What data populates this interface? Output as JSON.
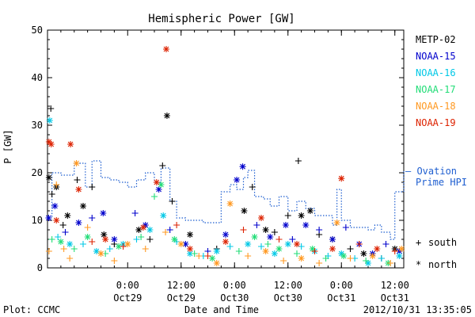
{
  "chart_data": {
    "type": "scatter",
    "title": "Hemispheric Power [GW]",
    "ylabel": "P [GW]",
    "xlabel": "Date and Time",
    "ylim": [
      0,
      50
    ],
    "yticks": [
      0,
      10,
      20,
      30,
      40,
      50
    ],
    "xlim": [
      "2012-10-28T06:00",
      "2012-10-31T14:00"
    ],
    "xticks": [
      {
        "x": "2012-10-29T00:00",
        "time": "0:00",
        "date": "Oct29"
      },
      {
        "x": "2012-10-29T12:00",
        "time": "12:00",
        "date": "Oct29"
      },
      {
        "x": "2012-10-30T00:00",
        "time": "0:00",
        "date": "Oct30"
      },
      {
        "x": "2012-10-30T12:00",
        "time": "12:00",
        "date": "Oct30"
      },
      {
        "x": "2012-10-31T00:00",
        "time": "0:00",
        "date": "Oct31"
      },
      {
        "x": "2012-10-31T12:00",
        "time": "12:00",
        "date": "Oct31"
      }
    ],
    "legend": {
      "placement": "right",
      "entries": [
        {
          "label": "METP-02",
          "color": "#000000"
        },
        {
          "label": "NOAA-15",
          "color": "#0000cc"
        },
        {
          "label": "NOAA-16",
          "color": "#00c8e6"
        },
        {
          "label": "NOAA-17",
          "color": "#22dd77"
        },
        {
          "label": "NOAA-18",
          "color": "#ff9922"
        },
        {
          "label": "NOAA-19",
          "color": "#dd2200"
        }
      ],
      "ovation_dash": "— Ovation",
      "ovation_label": "Prime HPI",
      "ovation_color": "#1f5fd0",
      "marker_legend": [
        {
          "symbol": "+",
          "label": "south"
        },
        {
          "symbol": "*",
          "label": "north"
        }
      ]
    },
    "series": [
      {
        "name": "METP-02",
        "color": "#000000",
        "points": [
          [
            "2012-10-28T06:20",
            19,
            "n"
          ],
          [
            "2012-10-28T06:45",
            33.5,
            "s"
          ],
          [
            "2012-10-28T07:00",
            15.5,
            "s"
          ],
          [
            "2012-10-28T08:00",
            17,
            "n"
          ],
          [
            "2012-10-28T09:30",
            9,
            "s"
          ],
          [
            "2012-10-28T10:30",
            11,
            "n"
          ],
          [
            "2012-10-28T12:40",
            18.5,
            "s"
          ],
          [
            "2012-10-28T14:00",
            13,
            "n"
          ],
          [
            "2012-10-28T16:00",
            17,
            "s"
          ],
          [
            "2012-10-28T18:40",
            7,
            "n"
          ],
          [
            "2012-10-28T21:00",
            5,
            "s"
          ],
          [
            "2012-10-29T02:30",
            8,
            "n"
          ],
          [
            "2012-10-29T05:00",
            6,
            "s"
          ],
          [
            "2012-10-29T07:50",
            21.5,
            "s"
          ],
          [
            "2012-10-29T08:50",
            32,
            "n"
          ],
          [
            "2012-10-29T10:00",
            14,
            "s"
          ],
          [
            "2012-10-29T14:00",
            7,
            "n"
          ],
          [
            "2012-10-29T20:00",
            4,
            "s"
          ],
          [
            "2012-10-30T02:10",
            12,
            "n"
          ],
          [
            "2012-10-30T04:00",
            17,
            "s"
          ],
          [
            "2012-10-30T07:00",
            8,
            "n"
          ],
          [
            "2012-10-30T09:00",
            7.5,
            "s"
          ],
          [
            "2012-10-30T12:00",
            11,
            "s"
          ],
          [
            "2012-10-30T14:20",
            22.5,
            "s"
          ],
          [
            "2012-10-30T15:00",
            11,
            "n"
          ],
          [
            "2012-10-30T17:00",
            12,
            "n"
          ],
          [
            "2012-10-30T19:00",
            7,
            "s"
          ],
          [
            "2012-10-30T22:00",
            6,
            "n"
          ],
          [
            "2012-10-31T02:00",
            4,
            "s"
          ],
          [
            "2012-10-31T05:00",
            3,
            "n"
          ],
          [
            "2012-10-31T09:00",
            2,
            "s"
          ],
          [
            "2012-10-31T12:00",
            4,
            "n"
          ]
        ]
      },
      {
        "name": "NOAA-15",
        "color": "#0000cc",
        "points": [
          [
            "2012-10-28T06:15",
            10.5,
            "n"
          ],
          [
            "2012-10-28T07:40",
            13,
            "n"
          ],
          [
            "2012-10-28T10:00",
            7.5,
            "s"
          ],
          [
            "2012-10-28T13:00",
            9.5,
            "n"
          ],
          [
            "2012-10-28T16:00",
            10.5,
            "s"
          ],
          [
            "2012-10-28T18:30",
            11.5,
            "n"
          ],
          [
            "2012-10-28T21:00",
            6,
            "n"
          ],
          [
            "2012-10-29T01:40",
            11.5,
            "s"
          ],
          [
            "2012-10-29T04:00",
            9,
            "n"
          ],
          [
            "2012-10-29T07:00",
            16.5,
            "n"
          ],
          [
            "2012-10-29T09:30",
            8,
            "s"
          ],
          [
            "2012-10-29T13:00",
            5,
            "n"
          ],
          [
            "2012-10-29T18:00",
            3.5,
            "s"
          ],
          [
            "2012-10-29T22:00",
            7,
            "n"
          ],
          [
            "2012-10-30T00:30",
            18.5,
            "n"
          ],
          [
            "2012-10-30T01:50",
            21.3,
            "n"
          ],
          [
            "2012-10-30T05:00",
            9,
            "s"
          ],
          [
            "2012-10-30T08:00",
            6.5,
            "n"
          ],
          [
            "2012-10-30T11:30",
            9,
            "n"
          ],
          [
            "2012-10-30T13:00",
            6,
            "s"
          ],
          [
            "2012-10-30T16:00",
            9,
            "n"
          ],
          [
            "2012-10-30T19:00",
            8,
            "s"
          ],
          [
            "2012-10-30T22:00",
            6,
            "n"
          ],
          [
            "2012-10-31T01:00",
            8.5,
            "s"
          ],
          [
            "2012-10-31T04:00",
            5,
            "n"
          ],
          [
            "2012-10-31T07:00",
            3,
            "n"
          ],
          [
            "2012-10-31T10:00",
            5,
            "s"
          ],
          [
            "2012-10-31T13:00",
            3.5,
            "n"
          ]
        ]
      },
      {
        "name": "NOAA-16",
        "color": "#00c8e6",
        "points": [
          [
            "2012-10-28T06:30",
            31,
            "n"
          ],
          [
            "2012-10-28T08:20",
            6.5,
            "s"
          ],
          [
            "2012-10-28T11:00",
            5,
            "n"
          ],
          [
            "2012-10-28T14:00",
            5,
            "s"
          ],
          [
            "2012-10-28T17:00",
            3.5,
            "n"
          ],
          [
            "2012-10-28T20:00",
            4,
            "s"
          ],
          [
            "2012-10-28T23:00",
            5,
            "n"
          ],
          [
            "2012-10-29T02:00",
            6,
            "s"
          ],
          [
            "2012-10-29T05:00",
            8,
            "n"
          ],
          [
            "2012-10-29T08:00",
            11,
            "n"
          ],
          [
            "2012-10-29T11:00",
            5.5,
            "s"
          ],
          [
            "2012-10-29T14:00",
            3,
            "n"
          ],
          [
            "2012-10-29T17:00",
            2.5,
            "s"
          ],
          [
            "2012-10-29T20:00",
            3.5,
            "n"
          ],
          [
            "2012-10-29T23:00",
            4.5,
            "s"
          ],
          [
            "2012-10-30T03:00",
            5,
            "n"
          ],
          [
            "2012-10-30T06:00",
            4.5,
            "s"
          ],
          [
            "2012-10-30T09:00",
            3,
            "n"
          ],
          [
            "2012-10-30T12:00",
            5,
            "n"
          ],
          [
            "2012-10-30T15:00",
            4.5,
            "s"
          ],
          [
            "2012-10-30T18:00",
            3.5,
            "n"
          ],
          [
            "2012-10-30T21:00",
            2.5,
            "s"
          ],
          [
            "2012-10-31T00:00",
            3,
            "n"
          ],
          [
            "2012-10-31T03:00",
            2,
            "s"
          ],
          [
            "2012-10-31T06:00",
            1,
            "n"
          ],
          [
            "2012-10-31T09:00",
            2,
            "s"
          ],
          [
            "2012-10-31T13:00",
            2.5,
            "n"
          ]
        ]
      },
      {
        "name": "NOAA-17",
        "color": "#22dd77",
        "points": [
          [
            "2012-10-28T07:00",
            6,
            "s"
          ],
          [
            "2012-10-28T09:00",
            5.5,
            "n"
          ],
          [
            "2012-10-28T12:00",
            4,
            "s"
          ],
          [
            "2012-10-28T15:00",
            6.5,
            "n"
          ],
          [
            "2012-10-28T19:00",
            3,
            "s"
          ],
          [
            "2012-10-28T22:00",
            4.5,
            "n"
          ],
          [
            "2012-10-29T03:00",
            6.5,
            "s"
          ],
          [
            "2012-10-29T06:00",
            15,
            "s"
          ],
          [
            "2012-10-29T07:30",
            17.5,
            "n"
          ],
          [
            "2012-10-29T10:30",
            6,
            "n"
          ],
          [
            "2012-10-29T15:00",
            3,
            "s"
          ],
          [
            "2012-10-29T19:00",
            2,
            "n"
          ],
          [
            "2012-10-30T01:00",
            3.5,
            "s"
          ],
          [
            "2012-10-30T04:30",
            6.5,
            "n"
          ],
          [
            "2012-10-30T07:30",
            5,
            "s"
          ],
          [
            "2012-10-30T10:00",
            4,
            "n"
          ],
          [
            "2012-10-30T14:00",
            3,
            "s"
          ],
          [
            "2012-10-30T17:30",
            4,
            "n"
          ],
          [
            "2012-10-30T20:30",
            2,
            "s"
          ],
          [
            "2012-10-31T00:30",
            2.5,
            "n"
          ],
          [
            "2012-10-31T05:30",
            1.5,
            "s"
          ],
          [
            "2012-10-31T10:30",
            1,
            "n"
          ]
        ]
      },
      {
        "name": "NOAA-18",
        "color": "#ff9922",
        "points": [
          [
            "2012-10-28T06:20",
            3.5,
            "s"
          ],
          [
            "2012-10-28T08:00",
            17.5,
            "s"
          ],
          [
            "2012-10-28T09:40",
            4,
            "s"
          ],
          [
            "2012-10-28T11:00",
            2,
            "s"
          ],
          [
            "2012-10-28T12:30",
            22,
            "n"
          ],
          [
            "2012-10-28T15:00",
            8.5,
            "s"
          ],
          [
            "2012-10-28T18:00",
            3,
            "n"
          ],
          [
            "2012-10-28T21:00",
            1.5,
            "s"
          ],
          [
            "2012-10-29T00:00",
            5,
            "n"
          ],
          [
            "2012-10-29T04:00",
            4,
            "s"
          ],
          [
            "2012-10-29T08:30",
            7.5,
            "s"
          ],
          [
            "2012-10-29T12:00",
            5,
            "n"
          ],
          [
            "2012-10-29T16:00",
            2.5,
            "s"
          ],
          [
            "2012-10-29T20:00",
            1,
            "n"
          ],
          [
            "2012-10-29T23:00",
            13.5,
            "n"
          ],
          [
            "2012-10-30T03:00",
            2.5,
            "s"
          ],
          [
            "2012-10-30T07:00",
            3.5,
            "n"
          ],
          [
            "2012-10-30T11:00",
            1.5,
            "s"
          ],
          [
            "2012-10-30T15:00",
            2,
            "n"
          ],
          [
            "2012-10-30T19:00",
            1,
            "s"
          ],
          [
            "2012-10-30T23:00",
            9.5,
            "n"
          ],
          [
            "2012-10-31T02:00",
            2,
            "s"
          ],
          [
            "2012-10-31T07:00",
            2.5,
            "n"
          ],
          [
            "2012-10-31T11:00",
            1,
            "s"
          ],
          [
            "2012-10-31T13:30",
            4,
            "n"
          ]
        ]
      },
      {
        "name": "NOAA-19",
        "color": "#dd2200",
        "points": [
          [
            "2012-10-28T06:20",
            26.5,
            "n"
          ],
          [
            "2012-10-28T06:50",
            26,
            "n"
          ],
          [
            "2012-10-28T08:00",
            10,
            "n"
          ],
          [
            "2012-10-28T11:10",
            26,
            "n"
          ],
          [
            "2012-10-28T13:00",
            16.5,
            "n"
          ],
          [
            "2012-10-28T16:00",
            5.5,
            "s"
          ],
          [
            "2012-10-28T19:00",
            6,
            "n"
          ],
          [
            "2012-10-28T23:00",
            4.5,
            "s"
          ],
          [
            "2012-10-29T03:30",
            8.5,
            "n"
          ],
          [
            "2012-10-29T06:30",
            18,
            "n"
          ],
          [
            "2012-10-29T08:40",
            46,
            "n"
          ],
          [
            "2012-10-29T11:00",
            9,
            "s"
          ],
          [
            "2012-10-29T14:00",
            4,
            "n"
          ],
          [
            "2012-10-29T18:00",
            2.5,
            "s"
          ],
          [
            "2012-10-29T22:00",
            5.5,
            "n"
          ],
          [
            "2012-10-30T02:00",
            8,
            "s"
          ],
          [
            "2012-10-30T06:00",
            10.5,
            "n"
          ],
          [
            "2012-10-30T10:00",
            6,
            "s"
          ],
          [
            "2012-10-30T14:00",
            5,
            "n"
          ],
          [
            "2012-10-30T18:00",
            3.5,
            "s"
          ],
          [
            "2012-10-30T22:00",
            4,
            "n"
          ],
          [
            "2012-10-31T00:00",
            18.8,
            "n"
          ],
          [
            "2012-10-31T04:00",
            5,
            "s"
          ],
          [
            "2012-10-31T08:00",
            4,
            "n"
          ],
          [
            "2012-10-31T12:00",
            3.5,
            "s"
          ]
        ]
      }
    ],
    "ovation_hpi": {
      "name": "Ovation Prime HPI",
      "color": "#1f5fd0",
      "steps": [
        [
          "2012-10-28T06:00",
          10.5
        ],
        [
          "2012-10-28T07:00",
          20
        ],
        [
          "2012-10-28T09:00",
          19.5
        ],
        [
          "2012-10-28T12:00",
          22
        ],
        [
          "2012-10-28T14:30",
          17
        ],
        [
          "2012-10-28T16:00",
          22.5
        ],
        [
          "2012-10-28T18:00",
          19
        ],
        [
          "2012-10-28T20:00",
          18.5
        ],
        [
          "2012-10-28T22:00",
          18
        ],
        [
          "2012-10-29T00:00",
          17
        ],
        [
          "2012-10-29T02:00",
          18.5
        ],
        [
          "2012-10-29T04:00",
          20
        ],
        [
          "2012-10-29T06:00",
          18
        ],
        [
          "2012-10-29T07:30",
          21
        ],
        [
          "2012-10-29T09:30",
          14
        ],
        [
          "2012-10-29T11:00",
          10.5
        ],
        [
          "2012-10-29T13:00",
          10
        ],
        [
          "2012-10-29T17:00",
          9.5
        ],
        [
          "2012-10-29T21:00",
          16
        ],
        [
          "2012-10-29T23:00",
          17.5
        ],
        [
          "2012-10-30T00:30",
          16.5
        ],
        [
          "2012-10-30T02:00",
          19
        ],
        [
          "2012-10-30T03:00",
          20.5
        ],
        [
          "2012-10-30T04:30",
          15
        ],
        [
          "2012-10-30T06:30",
          14.5
        ],
        [
          "2012-10-30T08:00",
          13
        ],
        [
          "2012-10-30T10:00",
          15
        ],
        [
          "2012-10-30T12:00",
          12
        ],
        [
          "2012-10-30T14:00",
          14
        ],
        [
          "2012-10-30T16:00",
          12.5
        ],
        [
          "2012-10-30T18:00",
          11
        ],
        [
          "2012-10-30T22:00",
          9
        ],
        [
          "2012-10-30T23:00",
          16.5
        ],
        [
          "2012-10-31T00:00",
          10
        ],
        [
          "2012-10-31T02:00",
          8.5
        ],
        [
          "2012-10-31T06:00",
          8
        ],
        [
          "2012-10-31T07:30",
          9
        ],
        [
          "2012-10-31T09:00",
          7.5
        ],
        [
          "2012-10-31T11:00",
          6
        ],
        [
          "2012-10-31T12:00",
          16
        ],
        [
          "2012-10-31T13:00",
          16
        ],
        [
          "2012-10-31T14:00",
          20.5
        ]
      ]
    }
  },
  "footer": {
    "left": "Plot: CCMC",
    "center": "Date and Time",
    "right": "2012/10/31  13:35:05"
  }
}
